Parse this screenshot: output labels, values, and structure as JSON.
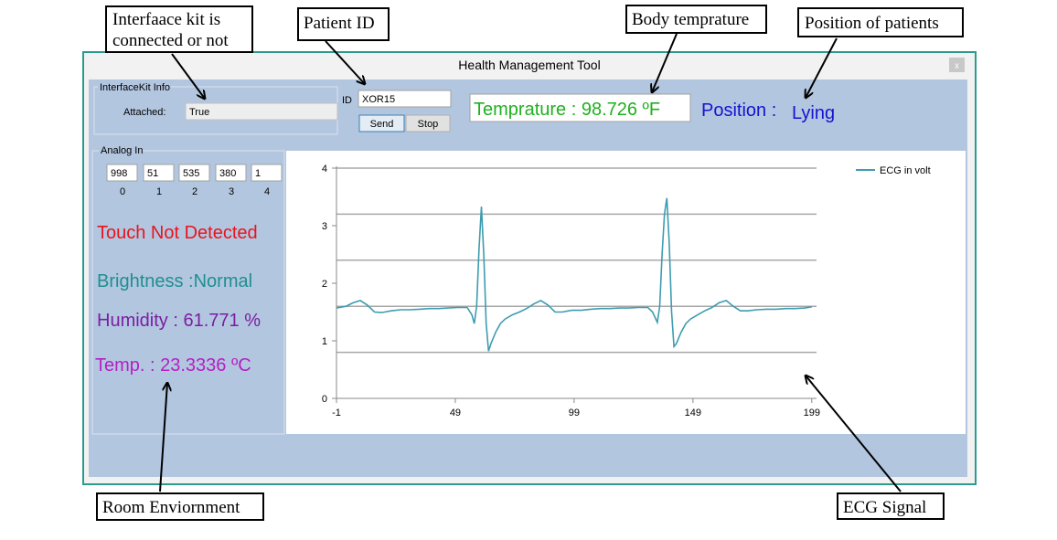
{
  "annotations": {
    "interface_kit": [
      "Interfaace kit is",
      "connected or not"
    ],
    "patient_id": "Patient ID",
    "body_temp": "Body temprature",
    "position": "Position of patients",
    "room": "Room Enviornment",
    "ecg": "ECG Signal"
  },
  "window": {
    "title": "Health Management Tool",
    "interface_kit": {
      "group": "InterfaceKit Info",
      "attached_label": "Attached:",
      "attached_value": "True"
    },
    "patient": {
      "id_label": "ID",
      "id_value": "XOR15",
      "send": "Send",
      "stop": "Stop"
    },
    "temperature": "Temprature : 98.726 ºF",
    "position_label": "Position :",
    "position_value": "Lying",
    "analog": {
      "group": "Analog In",
      "values": [
        998,
        51,
        535,
        380,
        1
      ],
      "labels": [
        0,
        1,
        2,
        3,
        4
      ]
    },
    "touch": "Touch Not Detected",
    "brightness": "Brightness :Normal",
    "humidity": "Humidity : 61.771 %",
    "room_temp": "Temp. : 23.3336 ºC"
  },
  "chart_data": {
    "type": "line",
    "x": [
      -1,
      3,
      6,
      9,
      12,
      15,
      18,
      22,
      26,
      30,
      34,
      38,
      42,
      46,
      50,
      54,
      56,
      57,
      58,
      59,
      60,
      61,
      62,
      63,
      64,
      66,
      68,
      70,
      73,
      76,
      79,
      82,
      85,
      88,
      91,
      94,
      98,
      102,
      106,
      110,
      114,
      118,
      122,
      126,
      130,
      132,
      134,
      135,
      136,
      137,
      138,
      139,
      140,
      141,
      142,
      144,
      146,
      148,
      151,
      154,
      157,
      160,
      163,
      166,
      169,
      172,
      176,
      180,
      184,
      188,
      192,
      196,
      199
    ],
    "series": [
      {
        "name": "ECG in volt",
        "color": "#3d9cb0",
        "values": [
          1.57,
          1.6,
          1.66,
          1.7,
          1.62,
          1.5,
          1.49,
          1.52,
          1.54,
          1.54,
          1.55,
          1.56,
          1.56,
          1.57,
          1.58,
          1.58,
          1.45,
          1.3,
          1.6,
          2.6,
          3.33,
          2.5,
          1.3,
          0.82,
          0.95,
          1.15,
          1.3,
          1.38,
          1.45,
          1.5,
          1.56,
          1.64,
          1.7,
          1.62,
          1.5,
          1.5,
          1.53,
          1.53,
          1.55,
          1.56,
          1.56,
          1.57,
          1.57,
          1.58,
          1.58,
          1.5,
          1.32,
          1.6,
          2.5,
          3.2,
          3.48,
          2.7,
          1.5,
          0.9,
          0.95,
          1.15,
          1.3,
          1.38,
          1.45,
          1.52,
          1.58,
          1.66,
          1.7,
          1.6,
          1.52,
          1.52,
          1.54,
          1.55,
          1.55,
          1.56,
          1.56,
          1.57,
          1.59
        ]
      }
    ],
    "xlim": [
      -1,
      201
    ],
    "ylim": [
      0,
      4
    ],
    "xticks": [
      -1,
      49,
      99,
      149,
      199
    ],
    "yticks": [
      0,
      1,
      2,
      3,
      4
    ],
    "ygrid": [
      0.8,
      1.6,
      2.4,
      3.2,
      4
    ],
    "legend": "upper right"
  }
}
